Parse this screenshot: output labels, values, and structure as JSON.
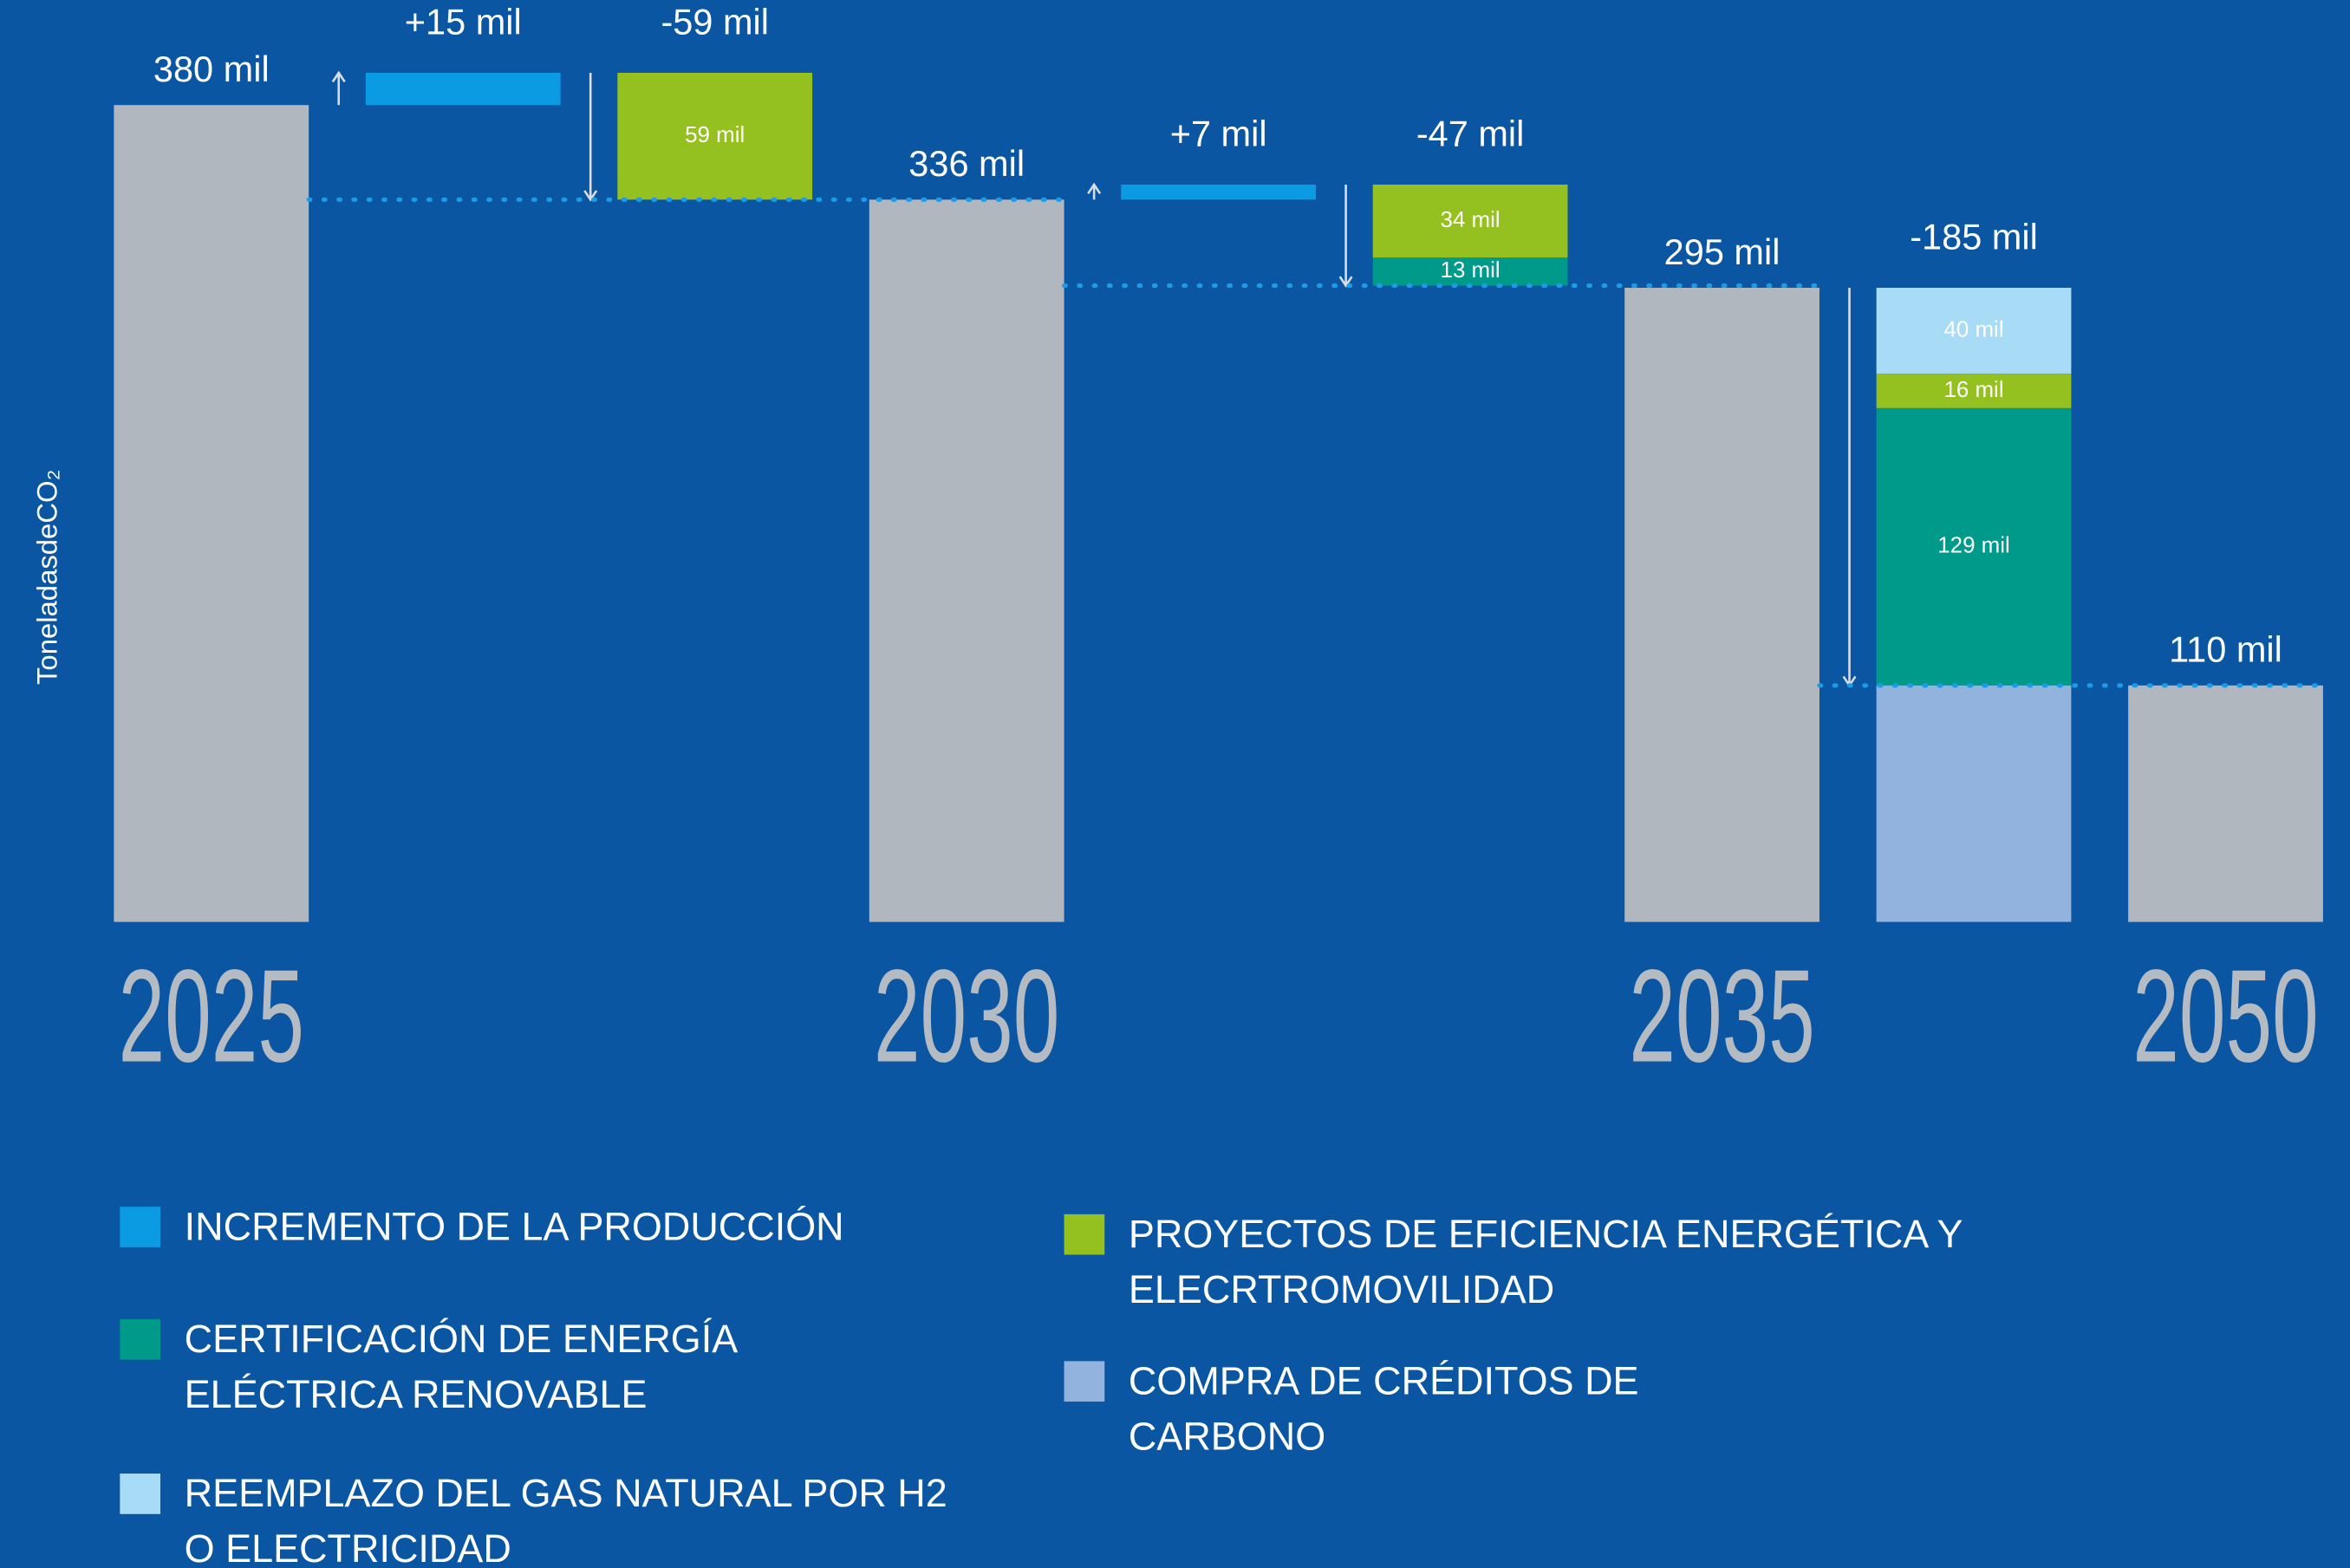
{
  "chart_data": {
    "type": "waterfall",
    "y_label": "ToneladasdeCO₂",
    "categories": [
      "2025",
      null,
      null,
      "2030",
      null,
      null,
      "2035",
      null,
      "2050"
    ],
    "values": [
      380,
      15,
      -59,
      336,
      7,
      -47,
      295,
      -185,
      110
    ],
    "value_labels": [
      "380 mil",
      "+15 mil",
      "-59 mil",
      "336 mil",
      "+7 mil",
      "-47 mil",
      "295 mil",
      "-185 mil",
      "110 mil"
    ],
    "total_color": "#b1b7bf",
    "series": [
      {
        "name": "INCREMENTO DE LA PRODUCCIÓN",
        "color": "#0a9be2",
        "values": [
          null,
          15,
          null,
          null,
          7,
          null,
          null,
          null,
          null
        ],
        "value_labels": [
          null,
          null,
          null,
          null,
          null,
          null,
          null,
          null,
          null
        ]
      },
      {
        "name": "CERTIFICACIÓN DE ENERGÍA ELÉCTRICA RENOVABLE",
        "color": "#009a8b",
        "values": [
          null,
          null,
          null,
          null,
          null,
          13,
          null,
          129,
          null
        ],
        "value_labels": [
          null,
          null,
          null,
          null,
          null,
          "13 mil",
          null,
          "129 mil",
          null
        ]
      },
      {
        "name": "REEMPLAZO DEL GAS NATURAL POR H2 O ELECTRICIDAD",
        "color": "#a8dbf6",
        "values": [
          null,
          null,
          null,
          null,
          null,
          null,
          null,
          40,
          null
        ],
        "value_labels": [
          null,
          null,
          null,
          null,
          null,
          null,
          null,
          "40 mil",
          null
        ]
      },
      {
        "name": "PROYECTOS DE EFICIENCIA ENERGÉTICA Y ELECRTROMOVILIDAD",
        "color": "#94c11f",
        "values": [
          null,
          null,
          59,
          null,
          null,
          34,
          null,
          16,
          null
        ],
        "value_labels": [
          null,
          null,
          "59 mil",
          null,
          null,
          "34 mil",
          null,
          "16 mil",
          null
        ]
      },
      {
        "name": "COMPRA DE CRÉDITOS DE CARBONO",
        "color": "#91b3de",
        "values": [
          null,
          null,
          null,
          null,
          null,
          null,
          null,
          110,
          null
        ],
        "value_labels": [
          null,
          null,
          null,
          null,
          null,
          null,
          null,
          null,
          null
        ]
      }
    ]
  }
}
